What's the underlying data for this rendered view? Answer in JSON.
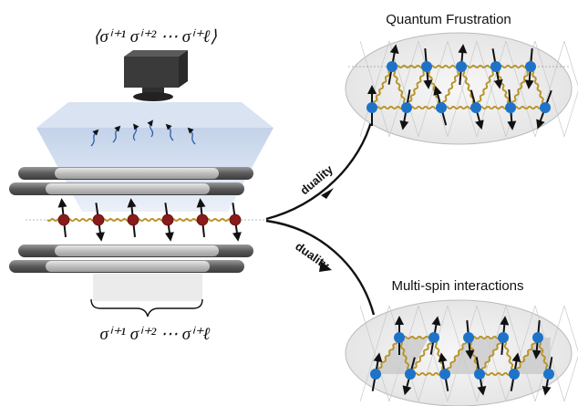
{
  "labels": {
    "top_formula": "⟨σⁱ⁺¹ σⁱ⁺² ⋯ σⁱ⁺ℓ⟩",
    "bottom_formula": "σⁱ⁺¹ σⁱ⁺² ⋯ σⁱ⁺ℓ",
    "title_frustration": "Quantum Frustration",
    "title_multispin": "Multi-spin interactions",
    "duality_upper": "duality",
    "duality_lower": "duality"
  },
  "colors": {
    "chain_spin": "#8b1a1a",
    "lattice_spin": "#1e73c9",
    "bond": "#b8952a",
    "camera": "#3a3a3a",
    "light_cone": "#c9d8ec",
    "rod_dark": "#555555",
    "rod_light": "#bdbdbd"
  },
  "icons": [
    "camera-icon",
    "emission-arrow-icon",
    "spin-arrow-icon"
  ],
  "chain": {
    "spin_count": 6,
    "arrows": [
      "up",
      "down",
      "up",
      "down",
      "up",
      "down"
    ]
  }
}
